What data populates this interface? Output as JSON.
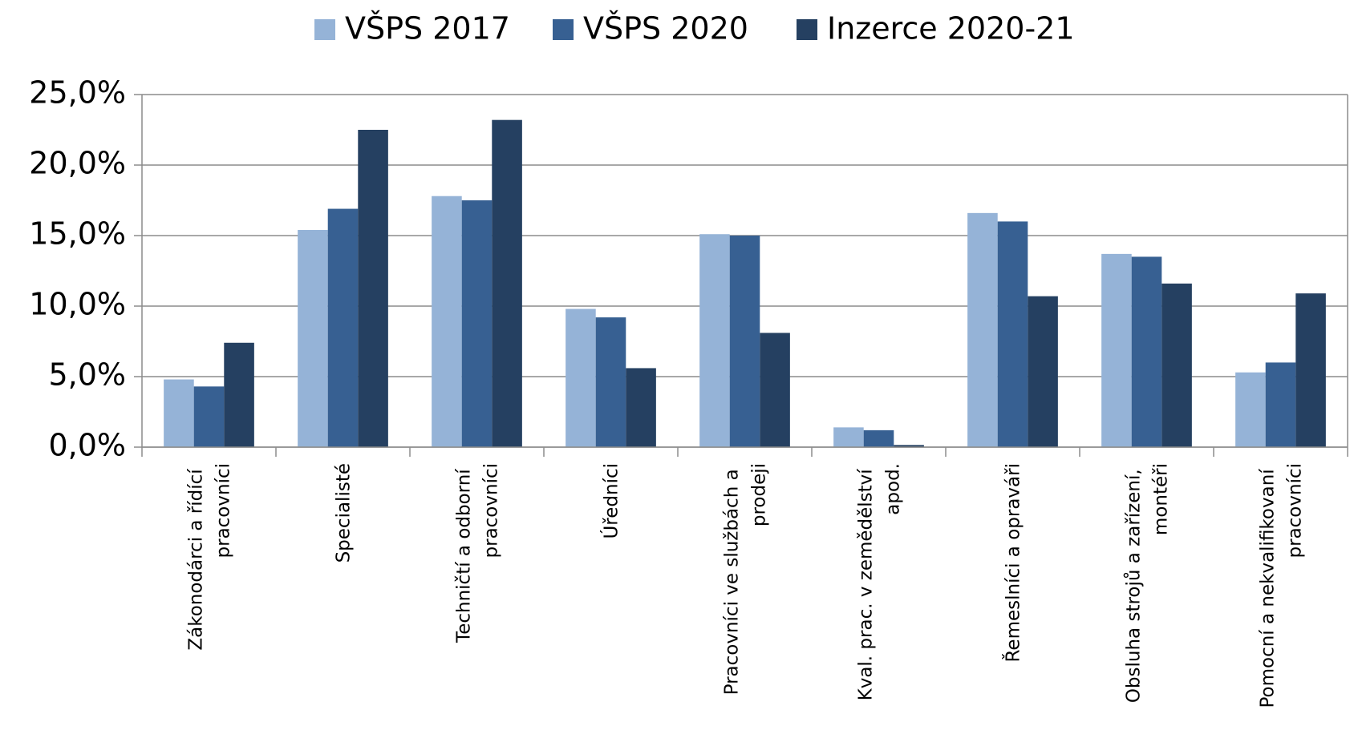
{
  "chart_data": {
    "type": "bar",
    "categories": [
      "Zákonodárci a řídící pracovníci",
      "Specialisté",
      "Techničtí a odborní pracovníci",
      "Úředníci",
      "Pracovníci ve službách a prodeji",
      "Kval. prac. v zemědělství apod.",
      "Řemeslníci a opraváři",
      "Obsluha strojů a zařízení, montéři",
      "Pomocní a nekvalifikovaní pracovníci"
    ],
    "series": [
      {
        "name": "VŠPS 2017",
        "color": "#95b3d7",
        "values": [
          4.8,
          15.4,
          17.8,
          9.8,
          15.1,
          1.4,
          16.6,
          13.7,
          5.3
        ]
      },
      {
        "name": "VŠPS 2020",
        "color": "#376092",
        "values": [
          4.3,
          16.9,
          17.5,
          9.2,
          15.0,
          1.2,
          16.0,
          13.5,
          6.0
        ]
      },
      {
        "name": "Inzerce 2020-21",
        "color": "#254061",
        "values": [
          7.4,
          22.5,
          23.2,
          5.6,
          8.1,
          0.15,
          10.7,
          11.6,
          10.9
        ]
      }
    ],
    "ylim": [
      0,
      25
    ],
    "yticks": [
      {
        "value": 0,
        "label": "0,0%"
      },
      {
        "value": 5,
        "label": "5,0%"
      },
      {
        "value": 10,
        "label": "10,0%"
      },
      {
        "value": 15,
        "label": "15,0%"
      },
      {
        "value": 20,
        "label": "20,0%"
      },
      {
        "value": 25,
        "label": "25,0%"
      }
    ],
    "grid": true,
    "legend": "top"
  }
}
